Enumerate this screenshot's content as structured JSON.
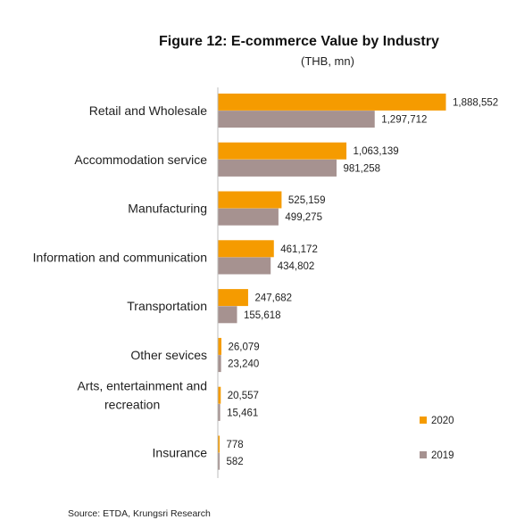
{
  "figure": {
    "title": "Figure 12: E-commerce Value by Industry",
    "subtitle": "(THB, mn)",
    "source": "Source: ETDA, Krungsri Research"
  },
  "chart_data": {
    "type": "bar",
    "orientation": "horizontal",
    "title": "Figure 12: E-commerce Value by Industry",
    "subtitle": "(THB, mn)",
    "categories": [
      "Retail and Wholesale",
      "Accommodation service",
      "Manufacturing",
      "Information and communication",
      "Transportation",
      "Other sevices",
      "Arts, entertainment and recreation",
      "Insurance"
    ],
    "category_lines": [
      [
        "Retail and Wholesale"
      ],
      [
        "Accommodation service"
      ],
      [
        "Manufacturing"
      ],
      [
        "Information and communication"
      ],
      [
        "Transportation"
      ],
      [
        "Other sevices"
      ],
      [
        "Arts, entertainment and",
        "recreation"
      ],
      [
        "Insurance"
      ]
    ],
    "series": [
      {
        "name": "2020",
        "color": "#f59b00",
        "values": [
          1888552,
          1063139,
          525159,
          461172,
          247682,
          26079,
          20557,
          778
        ],
        "labels": [
          "1,888,552",
          "1,063,139",
          "525,159",
          "461,172",
          "247,682",
          "26,079",
          "20,557",
          "778"
        ]
      },
      {
        "name": "2019",
        "color": "#a69290",
        "values": [
          1297712,
          981258,
          499275,
          434802,
          155618,
          23240,
          15461,
          582
        ],
        "labels": [
          "1,297,712",
          "981,258",
          "499,275",
          "434,802",
          "155,618",
          "23,240",
          "15,461",
          "582"
        ]
      }
    ],
    "xlim": [
      0,
      1888552
    ],
    "grid": false,
    "legend": "bottom-right",
    "axis_color": "#bdbdbd"
  }
}
